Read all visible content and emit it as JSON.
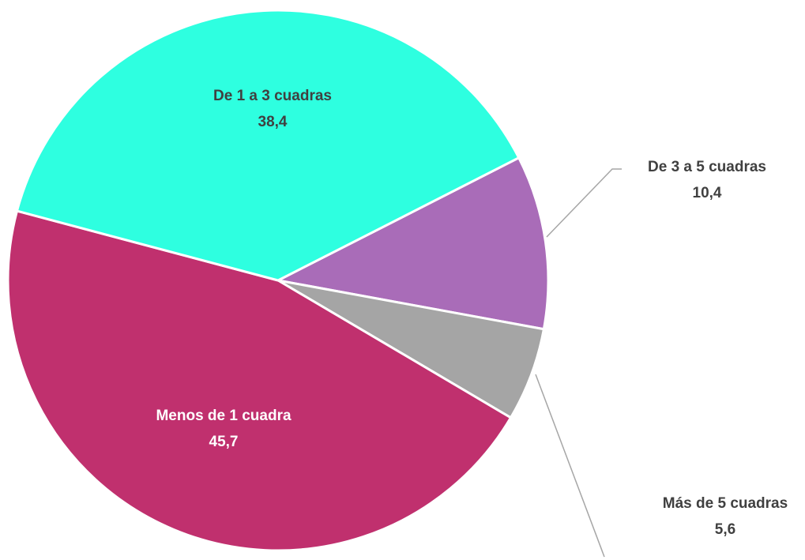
{
  "chart_data": {
    "type": "pie",
    "categories": [
      "De 3 a 5 cuadras",
      "Más de 5 cuadras",
      "Menos de 1 cuadra",
      "De 1 a 3 cuadras"
    ],
    "values": [
      10.4,
      5.6,
      45.7,
      38.4
    ],
    "value_labels": [
      "10,4",
      "5,6",
      "45,7",
      "38,4"
    ],
    "colors": [
      "#a96cb8",
      "#a5a5a5",
      "#c0306e",
      "#2effe0"
    ]
  }
}
